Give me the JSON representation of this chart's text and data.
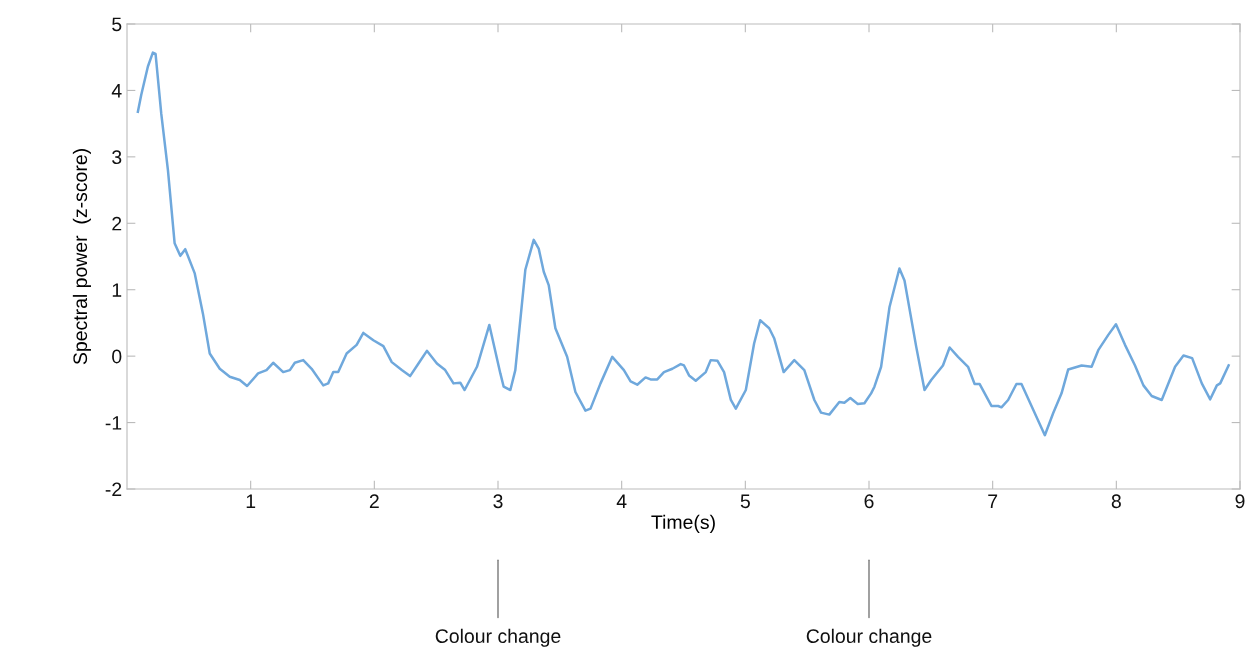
{
  "chart_data": {
    "type": "line",
    "xlabel": "Time(s)",
    "ylabel": "Spectral power  (z-score)",
    "xlim": [
      0,
      9
    ],
    "xticks": [
      1,
      2,
      3,
      4,
      5,
      6,
      7,
      8,
      9
    ],
    "ylim": [
      -2,
      5
    ],
    "yticks": [
      -2,
      -1,
      0,
      1,
      2,
      3,
      4,
      5
    ],
    "grid": false,
    "legend": false,
    "marker": "none",
    "line_style": "solid",
    "annotations": [
      {
        "text": "Colour change",
        "x": 3
      },
      {
        "text": "Colour change",
        "x": 6
      }
    ],
    "series": [
      {
        "color": "#6fa8dc",
        "x": [
          0.088,
          0.115,
          0.169,
          0.209,
          0.231,
          0.277,
          0.331,
          0.385,
          0.431,
          0.471,
          0.547,
          0.614,
          0.669,
          0.75,
          0.831,
          0.912,
          0.971,
          1.06,
          1.128,
          1.182,
          1.263,
          1.317,
          1.357,
          1.425,
          1.493,
          1.587,
          1.627,
          1.668,
          1.708,
          1.776,
          1.857,
          1.911,
          1.992,
          2.073,
          2.141,
          2.222,
          2.289,
          2.357,
          2.425,
          2.506,
          2.573,
          2.64,
          2.695,
          2.73,
          2.83,
          2.93,
          3.019,
          3.046,
          3.1,
          3.14,
          3.221,
          3.289,
          3.329,
          3.37,
          3.41,
          3.464,
          3.559,
          3.626,
          3.707,
          3.748,
          3.829,
          3.924,
          4.018,
          4.072,
          4.126,
          4.193,
          4.234,
          4.288,
          4.342,
          4.41,
          4.477,
          4.504,
          4.545,
          4.599,
          4.68,
          4.72,
          4.775,
          4.828,
          4.883,
          4.923,
          5.004,
          5.071,
          5.12,
          5.193,
          5.233,
          5.31,
          5.396,
          5.477,
          5.558,
          5.612,
          5.679,
          5.76,
          5.801,
          5.849,
          5.909,
          5.963,
          6.017,
          6.044,
          6.098,
          6.166,
          6.246,
          6.287,
          6.382,
          6.449,
          6.503,
          6.598,
          6.652,
          6.72,
          6.801,
          6.854,
          6.895,
          6.99,
          7.044,
          7.071,
          7.125,
          7.192,
          7.233,
          7.422,
          7.489,
          7.557,
          7.611,
          7.719,
          7.8,
          7.854,
          7.935,
          7.997,
          8.07,
          8.151,
          8.219,
          8.286,
          8.367,
          8.475,
          8.543,
          8.613,
          8.691,
          8.759,
          8.813,
          8.84,
          8.908
        ],
        "values": [
          3.68,
          3.93,
          4.36,
          4.57,
          4.55,
          3.65,
          2.8,
          1.7,
          1.51,
          1.61,
          1.25,
          0.64,
          0.04,
          -0.19,
          -0.31,
          -0.36,
          -0.45,
          -0.26,
          -0.21,
          -0.1,
          -0.24,
          -0.21,
          -0.1,
          -0.06,
          -0.19,
          -0.44,
          -0.41,
          -0.24,
          -0.24,
          0.04,
          0.17,
          0.35,
          0.24,
          0.15,
          -0.09,
          -0.21,
          -0.3,
          -0.11,
          0.08,
          -0.11,
          -0.21,
          -0.41,
          -0.4,
          -0.51,
          -0.16,
          0.47,
          -0.26,
          -0.46,
          -0.51,
          -0.21,
          1.3,
          1.75,
          1.62,
          1.27,
          1.07,
          0.42,
          -0.01,
          -0.54,
          -0.82,
          -0.79,
          -0.41,
          -0.01,
          -0.21,
          -0.38,
          -0.43,
          -0.32,
          -0.35,
          -0.35,
          -0.24,
          -0.19,
          -0.12,
          -0.14,
          -0.29,
          -0.37,
          -0.24,
          -0.06,
          -0.07,
          -0.24,
          -0.66,
          -0.79,
          -0.51,
          0.19,
          0.54,
          0.42,
          0.27,
          -0.24,
          -0.06,
          -0.21,
          -0.66,
          -0.85,
          -0.88,
          -0.69,
          -0.7,
          -0.63,
          -0.72,
          -0.71,
          -0.56,
          -0.46,
          -0.16,
          0.74,
          1.32,
          1.14,
          0.14,
          -0.51,
          -0.36,
          -0.14,
          0.13,
          -0.01,
          -0.16,
          -0.42,
          -0.42,
          -0.75,
          -0.75,
          -0.77,
          -0.66,
          -0.42,
          -0.42,
          -1.19,
          -0.86,
          -0.56,
          -0.2,
          -0.14,
          -0.16,
          0.09,
          0.32,
          0.48,
          0.17,
          -0.14,
          -0.44,
          -0.6,
          -0.66,
          -0.16,
          0.01,
          -0.03,
          -0.41,
          -0.65,
          -0.44,
          -0.41,
          -0.14
        ]
      }
    ]
  }
}
